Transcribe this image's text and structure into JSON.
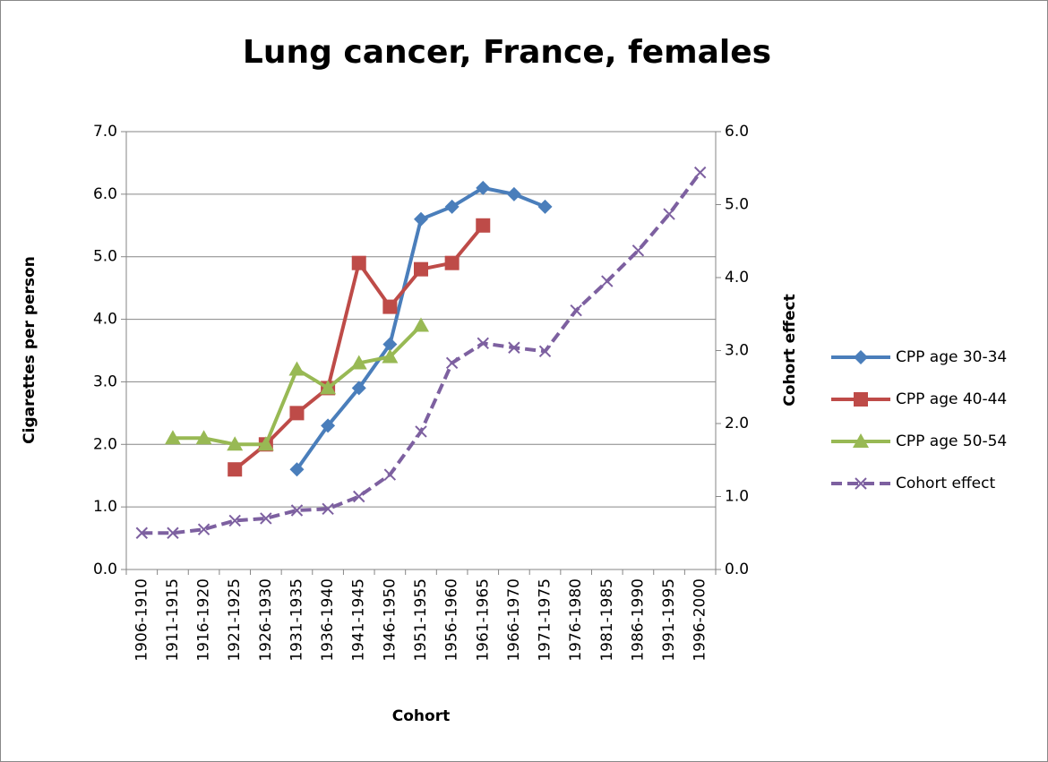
{
  "chart_data": {
    "type": "line",
    "title": "Lung cancer, France, females",
    "x_label": "Cohort",
    "y_label": "Cigarettes per person",
    "y2_label": "Cohort effect",
    "categories": [
      "1906-1910",
      "1911-1915",
      "1916-1920",
      "1921-1925",
      "1926-1930",
      "1931-1935",
      "1936-1940",
      "1941-1945",
      "1946-1950",
      "1951-1955",
      "1956-1960",
      "1961-1965",
      "1966-1970",
      "1971-1975",
      "1976-1980",
      "1981-1985",
      "1986-1990",
      "1991-1995",
      "1996-2000"
    ],
    "series": [
      {
        "name": "CPP age 30-34",
        "color": "#4a7ebb",
        "marker": "diamond",
        "values": [
          null,
          null,
          null,
          null,
          null,
          1.6,
          2.3,
          2.9,
          3.6,
          5.6,
          5.8,
          6.1,
          6.0,
          5.8,
          null,
          null,
          null,
          null,
          null
        ]
      },
      {
        "name": "CPP age 40-44",
        "color": "#be4b48",
        "marker": "square",
        "values": [
          null,
          null,
          null,
          1.6,
          2.0,
          2.5,
          2.9,
          4.9,
          4.2,
          4.8,
          4.9,
          5.5,
          null,
          null,
          null,
          null,
          null,
          null,
          null
        ]
      },
      {
        "name": "CPP age 50-54",
        "color": "#98b954",
        "marker": "triangle",
        "values": [
          null,
          2.1,
          2.1,
          2.0,
          2.0,
          3.2,
          2.9,
          3.3,
          3.4,
          3.9,
          null,
          null,
          null,
          null,
          null,
          null,
          null,
          null,
          null
        ]
      },
      {
        "name": "Cohort effect",
        "color": "#7d60a0",
        "marker": "x",
        "dashed": true,
        "axis": "y2",
        "values": [
          0.5,
          0.5,
          0.55,
          0.67,
          0.7,
          0.81,
          0.83,
          1.0,
          1.3,
          1.89,
          2.83,
          3.1,
          3.04,
          2.99,
          3.55,
          3.95,
          4.37,
          4.87,
          5.44
        ]
      }
    ],
    "ylim": [
      0,
      7
    ],
    "yticks": [
      {
        "value": 0,
        "label": "0.0"
      },
      {
        "value": 1,
        "label": "1.0"
      },
      {
        "value": 2,
        "label": "2.0"
      },
      {
        "value": 3,
        "label": "3.0"
      },
      {
        "value": 4,
        "label": "4.0"
      },
      {
        "value": 5,
        "label": "5.0"
      },
      {
        "value": 6,
        "label": "6.0"
      },
      {
        "value": 7,
        "label": "7.0"
      }
    ],
    "y2lim": [
      0,
      6
    ],
    "y2ticks": [
      {
        "value": 0,
        "label": "0.0"
      },
      {
        "value": 1,
        "label": "1.0"
      },
      {
        "value": 2,
        "label": "2.0"
      },
      {
        "value": 3,
        "label": "3.0"
      },
      {
        "value": 4,
        "label": "4.0"
      },
      {
        "value": 5,
        "label": "5.0"
      },
      {
        "value": 6,
        "label": "6.0"
      }
    ],
    "grid": true,
    "legend": "right"
  }
}
